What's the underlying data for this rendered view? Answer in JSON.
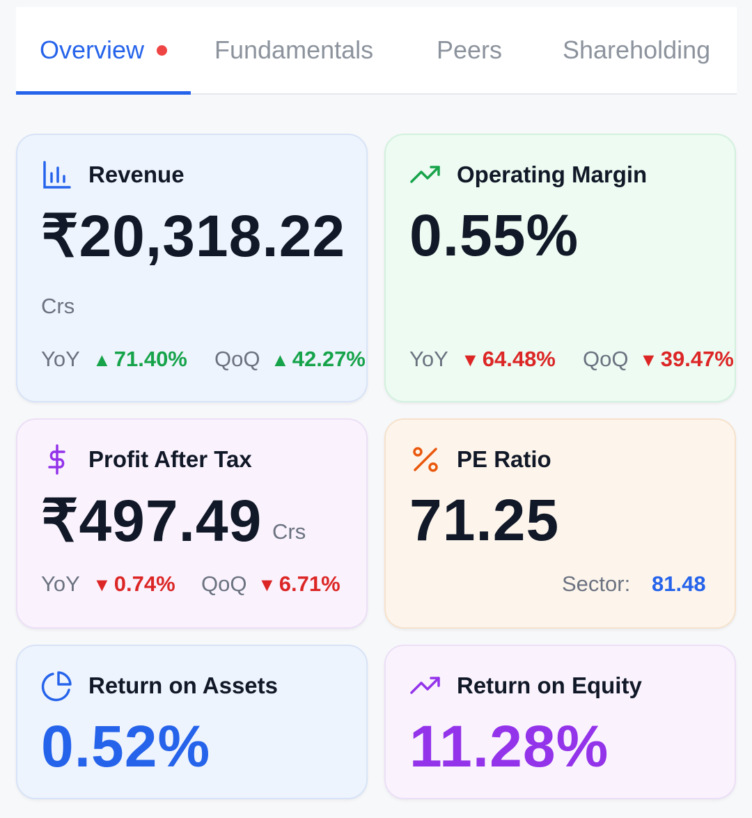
{
  "tabs": [
    {
      "label": "Overview"
    },
    {
      "label": "Fundamentals"
    },
    {
      "label": "Peers"
    },
    {
      "label": "Shareholding"
    }
  ],
  "cards": {
    "revenue": {
      "title": "Revenue",
      "value": "₹20,318.22",
      "unit": "Crs",
      "yoy_label": "YoY",
      "yoy": "71.40%",
      "qoq_label": "QoQ",
      "qoq": "42.27%",
      "icon": "bar-chart-icon"
    },
    "operating_margin": {
      "title": "Operating Margin",
      "value": "0.55%",
      "yoy_label": "YoY",
      "yoy": "64.48%",
      "qoq_label": "QoQ",
      "qoq": "39.47%",
      "icon": "trending-up-icon"
    },
    "pat": {
      "title": "Profit After Tax",
      "value": "₹497.49",
      "unit": "Crs",
      "yoy_label": "YoY",
      "yoy": "0.74%",
      "qoq_label": "QoQ",
      "qoq": "6.71%",
      "icon": "dollar-icon"
    },
    "pe": {
      "title": "PE Ratio",
      "value": "71.25",
      "sector_label": "Sector:",
      "sector_value": "81.48",
      "icon": "percent-icon"
    },
    "roa": {
      "title": "Return on Assets",
      "value": "0.52%",
      "icon": "pie-chart-icon"
    },
    "roe": {
      "title": "Return on Equity",
      "value": "11.28%",
      "icon": "trending-up-icon"
    }
  },
  "arrows": {
    "up": "▲",
    "down": "▼"
  },
  "colors": {
    "accent": "#2563eb",
    "positive": "#16a34a",
    "negative": "#dc2626",
    "roe": "#9333ea",
    "notification_dot": "#ef4444"
  }
}
